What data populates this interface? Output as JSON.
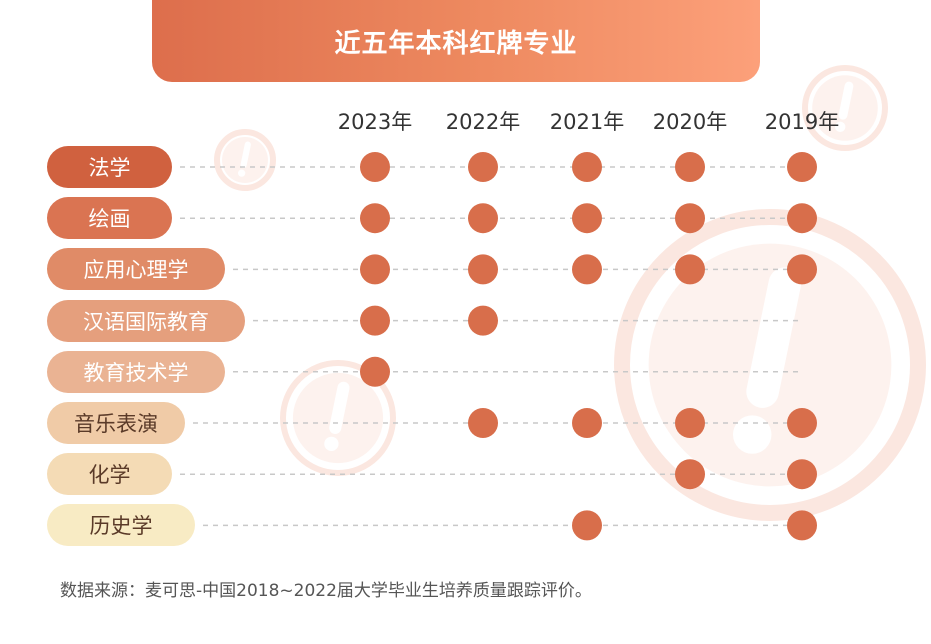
{
  "title": "近五年本科红牌专业",
  "source_note": "数据来源：麦可思-中国2018~2022届大学毕业生培养质量跟踪评价。",
  "colors": {
    "dot": "#d86e4b",
    "dashed_line": "#c8c8c8",
    "watermark": "#fbe7e0"
  },
  "icons": [
    "exclamation-watermark-icon"
  ],
  "chart_data": {
    "type": "table",
    "title": "近五年本科红牌专业",
    "columns": [
      "2023年",
      "2022年",
      "2021年",
      "2020年",
      "2019年"
    ],
    "rows": [
      {
        "name": "法学",
        "marks": [
          true,
          true,
          true,
          true,
          true
        ],
        "label_bg": "#d0613f",
        "label_color": "#ffffff"
      },
      {
        "name": "绘画",
        "marks": [
          true,
          true,
          true,
          true,
          true
        ],
        "label_bg": "#da7452",
        "label_color": "#ffffff"
      },
      {
        "name": "应用心理学",
        "marks": [
          true,
          true,
          true,
          true,
          true
        ],
        "label_bg": "#e08b67",
        "label_color": "#ffffff"
      },
      {
        "name": "汉语国际教育",
        "marks": [
          true,
          true,
          false,
          false,
          false
        ],
        "label_bg": "#e59f7d",
        "label_color": "#ffffff"
      },
      {
        "name": "教育技术学",
        "marks": [
          true,
          false,
          false,
          false,
          false
        ],
        "label_bg": "#eab393",
        "label_color": "#ffffff"
      },
      {
        "name": "音乐表演",
        "marks": [
          false,
          true,
          true,
          true,
          true
        ],
        "label_bg": "#f0cba7",
        "label_color": "#5a3a28"
      },
      {
        "name": "化学",
        "marks": [
          false,
          false,
          false,
          true,
          true
        ],
        "label_bg": "#f4dbb5",
        "label_color": "#5a3a28"
      },
      {
        "name": "历史学",
        "marks": [
          false,
          false,
          true,
          false,
          true
        ],
        "label_bg": "#f8ebc4",
        "label_color": "#5a3a28"
      }
    ]
  }
}
